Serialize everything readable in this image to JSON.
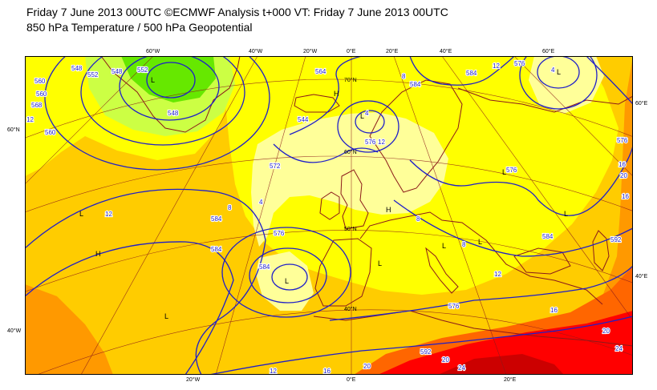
{
  "header": {
    "title_line1": "Friday 7 June 2013 00UTC ©ECMWF Analysis t+000 VT: Friday 7 June 2013 00UTC",
    "title_line2": "850 hPa Temperature / 500 hPa Geopotential"
  },
  "colors": {
    "temp_le_0": "#66e800",
    "temp_0_4": "#ccff44",
    "temp_4_8": "#ffff99",
    "temp_8_12": "#ffff00",
    "temp_12_16": "#ffcc00",
    "temp_16_20": "#ff9900",
    "temp_20_24": "#ff6600",
    "temp_24_28": "#ff0000",
    "temp_ge_28": "#cc0000",
    "geopotential_contour": "#1f1fc8",
    "coastline": "#8b1a1a",
    "graticule": "#8b1a1a"
  },
  "graticule_labels": {
    "top": [
      "60°W",
      "40°W",
      "20°W",
      "0°E",
      "20°E",
      "40°E",
      "60°E"
    ],
    "bottom": [
      "20°W",
      "0°E",
      "20°E"
    ],
    "left": [
      "60°N",
      "40°W"
    ],
    "right": [
      "60°E",
      "40°E"
    ],
    "inner": [
      "70°N",
      "60°N",
      "50°N",
      "40°N"
    ]
  },
  "contour_labels": {
    "geopotential": [
      "564",
      "560",
      "552",
      "548",
      "548",
      "544",
      "548",
      "572",
      "576",
      "584",
      "584",
      "576",
      "592",
      "576",
      "576",
      "576",
      "584",
      "576",
      "592",
      "584",
      "584",
      "584",
      "560",
      "552",
      "568",
      "560"
    ],
    "temperature": [
      "8",
      "4",
      "12",
      "8",
      "8",
      "4",
      "12",
      "12",
      "16",
      "20",
      "16",
      "20",
      "24",
      "20",
      "24",
      "12",
      "16",
      "20",
      "16",
      "4",
      "12",
      "8",
      "12"
    ]
  },
  "pressure_centers": [
    "L",
    "L",
    "L",
    "L",
    "L",
    "L",
    "L",
    "L",
    "L",
    "L",
    "L",
    "H",
    "H",
    "H"
  ]
}
